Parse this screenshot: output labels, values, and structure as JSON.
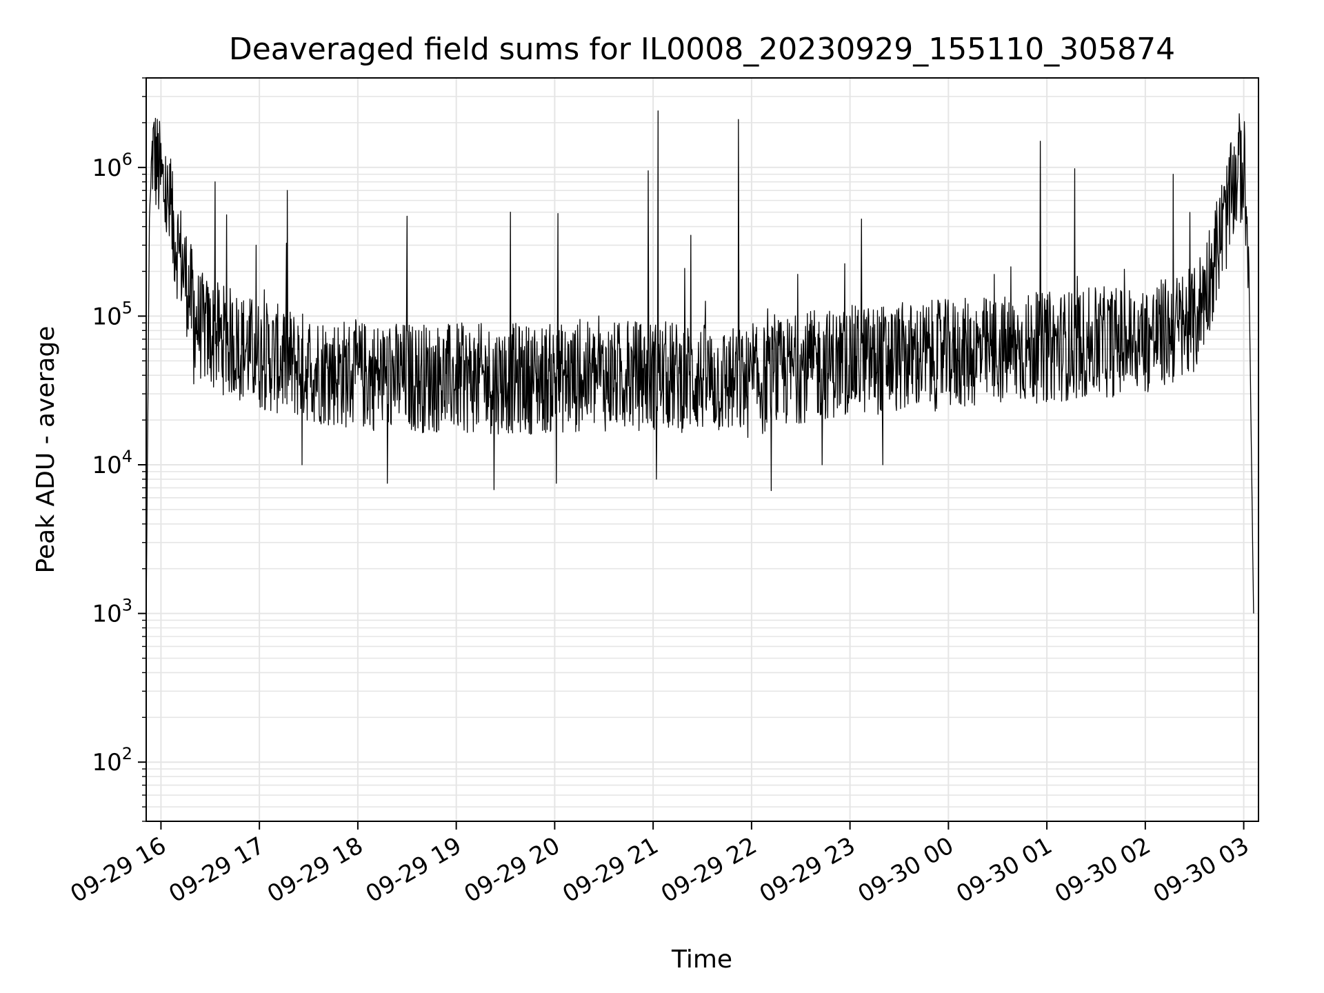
{
  "chart_data": {
    "type": "line",
    "title": "Deaveraged field sums for IL0008_20230929_155110_305874",
    "xlabel": "Time",
    "ylabel": "Peak ADU - average",
    "yscale": "log",
    "ylim": [
      40,
      4000000
    ],
    "xlim": [
      "09-29 15:51",
      "09-30 03:09"
    ],
    "grid": true,
    "line_color": "#000000",
    "grid_color": "#e5e5e5",
    "x_ticks": [
      {
        "t": "09-29 16:00",
        "label": "09-29 16"
      },
      {
        "t": "09-29 17:00",
        "label": "09-29 17"
      },
      {
        "t": "09-29 18:00",
        "label": "09-29 18"
      },
      {
        "t": "09-29 19:00",
        "label": "09-29 19"
      },
      {
        "t": "09-29 20:00",
        "label": "09-29 20"
      },
      {
        "t": "09-29 21:00",
        "label": "09-29 21"
      },
      {
        "t": "09-29 22:00",
        "label": "09-29 22"
      },
      {
        "t": "09-29 23:00",
        "label": "09-29 23"
      },
      {
        "t": "09-30 00:00",
        "label": "09-30 00"
      },
      {
        "t": "09-30 01:00",
        "label": "09-30 01"
      },
      {
        "t": "09-30 02:00",
        "label": "09-30 02"
      },
      {
        "t": "09-30 03:00",
        "label": "09-30 03"
      }
    ],
    "y_ticks": [
      {
        "value": 100,
        "base": "10",
        "exp": "2"
      },
      {
        "value": 1000,
        "base": "10",
        "exp": "3"
      },
      {
        "value": 10000,
        "base": "10",
        "exp": "4"
      },
      {
        "value": 100000,
        "base": "10",
        "exp": "5"
      },
      {
        "value": 1000000,
        "base": "10",
        "exp": "6"
      }
    ],
    "series": [
      {
        "points": [
          [
            "09-29 15:51",
            1000
          ],
          [
            "09-29 15:53",
            500000
          ],
          [
            "09-29 15:55",
            1300000
          ],
          [
            "09-29 15:58",
            1000000
          ],
          [
            "09-29 16:02",
            700000
          ],
          [
            "09-29 16:07",
            400000
          ],
          [
            "09-29 16:12",
            250000
          ],
          [
            "09-29 16:17",
            150000
          ],
          [
            "09-29 16:22",
            90000
          ],
          [
            "09-29 16:30",
            75000
          ],
          [
            "09-29 16:45",
            65000
          ],
          [
            "09-29 17:00",
            55000
          ],
          [
            "09-29 17:30",
            45000
          ],
          [
            "09-29 18:00",
            40000
          ],
          [
            "09-29 19:00",
            38000
          ],
          [
            "09-29 20:00",
            38000
          ],
          [
            "09-29 21:00",
            40000
          ],
          [
            "09-29 21:30",
            38000
          ],
          [
            "09-29 22:00",
            35000
          ],
          [
            "09-29 22:30",
            45000
          ],
          [
            "09-29 23:00",
            50000
          ],
          [
            "09-30 00:00",
            55000
          ],
          [
            "09-30 01:00",
            62000
          ],
          [
            "09-30 02:00",
            70000
          ],
          [
            "09-30 02:30",
            90000
          ],
          [
            "09-30 02:40",
            200000
          ],
          [
            "09-30 02:50",
            500000
          ],
          [
            "09-30 02:57",
            1000000
          ],
          [
            "09-30 03:00",
            900000
          ],
          [
            "09-30 03:03",
            300000
          ],
          [
            "09-30 03:06",
            1000
          ]
        ],
        "spikes": [
          [
            "09-29 16:33",
            800000
          ],
          [
            "09-29 16:40",
            480000
          ],
          [
            "09-29 16:58",
            300000
          ],
          [
            "09-29 17:17",
            700000
          ],
          [
            "09-29 18:30",
            470000
          ],
          [
            "09-29 19:33",
            500000
          ],
          [
            "09-29 20:02",
            490000
          ],
          [
            "09-29 20:57",
            950000
          ],
          [
            "09-29 21:03",
            2400000
          ],
          [
            "09-29 21:23",
            350000
          ],
          [
            "09-29 21:52",
            2100000
          ],
          [
            "09-29 23:07",
            450000
          ],
          [
            "09-30 00:56",
            1500000
          ],
          [
            "09-30 01:17",
            980000
          ],
          [
            "09-30 02:17",
            900000
          ]
        ],
        "dips": [
          [
            "09-29 16:20",
            35000
          ],
          [
            "09-29 17:26",
            10000
          ],
          [
            "09-29 18:18",
            7500
          ],
          [
            "09-29 19:23",
            6800
          ],
          [
            "09-29 20:01",
            7500
          ],
          [
            "09-29 21:02",
            8000
          ],
          [
            "09-29 22:12",
            6700
          ],
          [
            "09-29 22:43",
            10000
          ],
          [
            "09-29 23:20",
            10000
          ]
        ]
      }
    ]
  }
}
